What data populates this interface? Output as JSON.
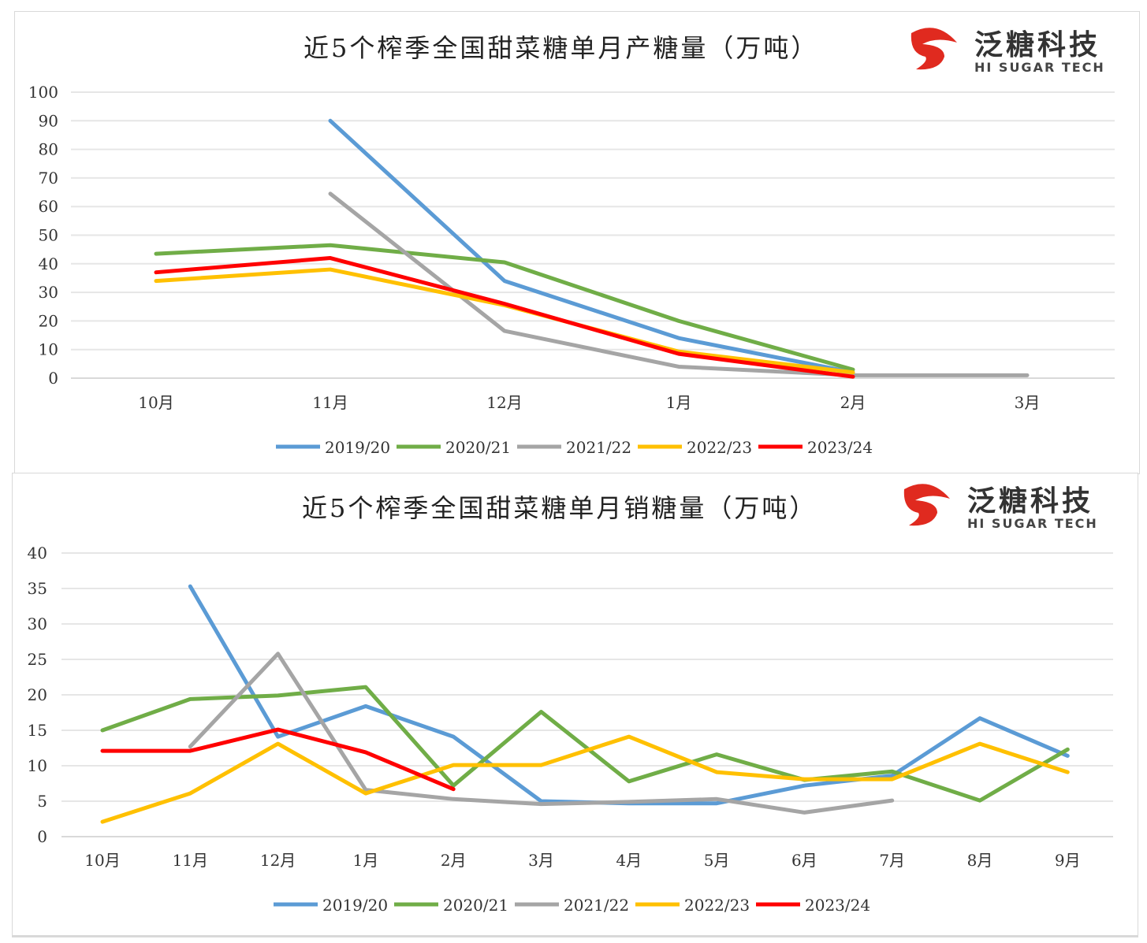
{
  "logo": {
    "cn": "泛糖科技",
    "en": "HI SUGAR TECH",
    "color": "#e02a1f"
  },
  "chart_data": [
    {
      "type": "line",
      "title": "近5个榨季全国甜菜糖单月产糖量（万吨）",
      "categories": [
        "10月",
        "11月",
        "12月",
        "1月",
        "2月",
        "3月"
      ],
      "ylim": [
        0,
        100
      ],
      "yticks": [
        0,
        10,
        20,
        30,
        40,
        50,
        60,
        70,
        80,
        90,
        100
      ],
      "grid": true,
      "legend": "bottom",
      "series": [
        {
          "name": "2019/20",
          "color": "#5b9bd5",
          "values": [
            null,
            90,
            34,
            14,
            2,
            null
          ]
        },
        {
          "name": "2020/21",
          "color": "#70ad47",
          "values": [
            43.5,
            46.5,
            40.5,
            20,
            3,
            null
          ]
        },
        {
          "name": "2021/22",
          "color": "#a5a5a5",
          "values": [
            null,
            64.5,
            16.5,
            4,
            1,
            1
          ]
        },
        {
          "name": "2022/23",
          "color": "#ffc000",
          "values": [
            34,
            38,
            25.5,
            9.3,
            2,
            null
          ]
        },
        {
          "name": "2023/24",
          "color": "#ff0000",
          "values": [
            37,
            42,
            26,
            8.5,
            0.5,
            null
          ]
        }
      ]
    },
    {
      "type": "line",
      "title": "近5个榨季全国甜菜糖单月销糖量（万吨）",
      "categories": [
        "10月",
        "11月",
        "12月",
        "1月",
        "2月",
        "3月",
        "4月",
        "5月",
        "6月",
        "7月",
        "8月",
        "9月"
      ],
      "ylim": [
        0,
        40
      ],
      "yticks": [
        0,
        5,
        10,
        15,
        20,
        25,
        30,
        35,
        40
      ],
      "grid": true,
      "legend": "bottom",
      "series": [
        {
          "name": "2019/20",
          "color": "#5b9bd5",
          "values": [
            null,
            35.3,
            14.1,
            18.4,
            14.1,
            5,
            4.7,
            4.7,
            7.2,
            8.6,
            16.7,
            11.4
          ]
        },
        {
          "name": "2020/21",
          "color": "#70ad47",
          "values": [
            15,
            19.4,
            19.9,
            21.1,
            7.2,
            17.6,
            7.8,
            11.6,
            8,
            9.2,
            5.1,
            12.3
          ]
        },
        {
          "name": "2021/22",
          "color": "#a5a5a5",
          "values": [
            null,
            12.7,
            25.8,
            6.6,
            5.3,
            4.6,
            4.9,
            5.3,
            3.4,
            5.1,
            null,
            null
          ]
        },
        {
          "name": "2022/23",
          "color": "#ffc000",
          "values": [
            2.1,
            6.1,
            13.1,
            6.1,
            10.1,
            10.1,
            14.1,
            9.1,
            8.1,
            8.1,
            13.1,
            9.1
          ]
        },
        {
          "name": "2023/24",
          "color": "#ff0000",
          "values": [
            12.1,
            12.1,
            15.1,
            11.9,
            6.7,
            null,
            null,
            null,
            null,
            null,
            null,
            null
          ]
        }
      ]
    }
  ]
}
